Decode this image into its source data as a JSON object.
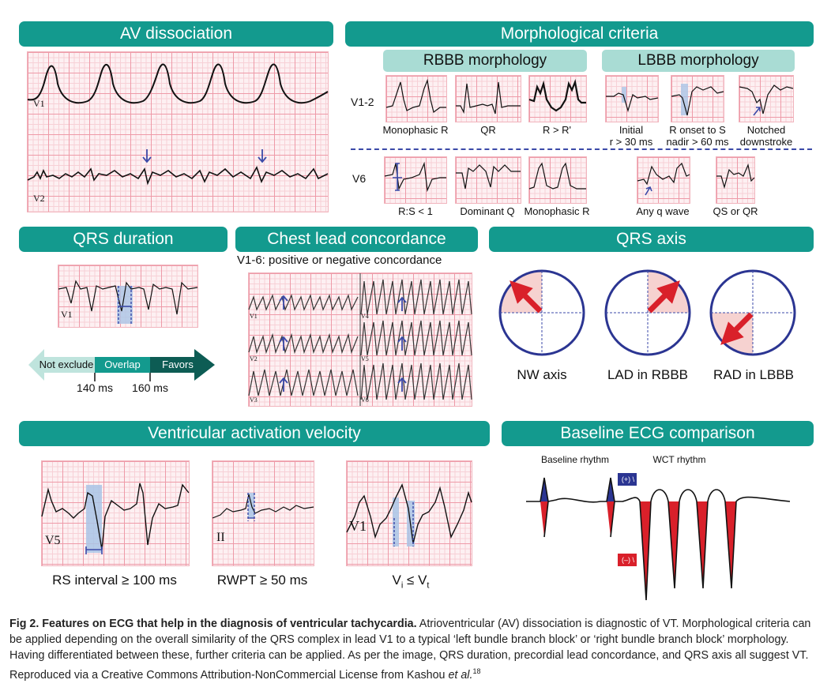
{
  "headers": {
    "av": "AV dissociation",
    "morph": "Morphological criteria",
    "rbbb": "RBBB morphology",
    "lbbb": "LBBB morphology",
    "qrs_dur": "QRS duration",
    "concord": "Chest lead concordance",
    "axis": "QRS axis",
    "velocity": "Ventricular activation velocity",
    "baseline": "Baseline ECG comparison"
  },
  "leads": {
    "v1": "V1",
    "v2": "V2",
    "v1_2": "V1-2",
    "v6": "V6",
    "v1_small": "V1",
    "v5": "V5",
    "ii": "II",
    "v1_vel": "V1",
    "v1c": "V1",
    "v2c": "V2",
    "v3c": "V3",
    "v4c": "V4",
    "v5c": "V5",
    "v6c": "V6"
  },
  "rbbb_v12": [
    "Monophasic R",
    "QR",
    "R > R'"
  ],
  "lbbb_v12": [
    "Initial\nr > 30 ms",
    "R onset to S\nnadir > 60 ms",
    "Notched\ndownstroke"
  ],
  "rbbb_v6": [
    "R:S < 1",
    "Dominant Q",
    "Monophasic R"
  ],
  "lbbb_v6": [
    "Any q wave",
    "QS or QR"
  ],
  "qrs_duration": {
    "segments": [
      "Not exclude",
      "Overlap",
      "Favors"
    ],
    "ticks": [
      "140 ms",
      "160 ms"
    ]
  },
  "concordance_title": "V1-6: positive or negative concordance",
  "axis_labels": [
    "NW axis",
    "LAD in RBBB",
    "RAD in LBBB"
  ],
  "velocity_labels": [
    "RS interval ≥ 100 ms",
    "RWPT ≥ 50 ms"
  ],
  "velocity_formula": {
    "v": "V",
    "i": "i",
    "le": " ≤ V",
    "t": "t"
  },
  "baseline": {
    "baseline_rhythm": "Baseline rhythm",
    "wct_rhythm": "WCT rhythm",
    "pos": "(+) \\",
    "neg": "(–) \\"
  },
  "caption": {
    "bold": "Fig 2. Features on ECG that help in the diagnosis of ventricular tachycardia.",
    "text": "Atrioventricular (AV) dissociation is diagnostic of VT. Morphological criteria can be applied depending on the overall similarity of the QRS complex in lead V1 to a typical ‘left bundle branch block’ or ‘right bundle branch block’ morphology. Having differentiated between these, further criteria can be applied. As per the image, QRS duration, precordial lead concordance, and QRS axis all suggest VT. Reproduced via a Creative Commons Attribution-NonCommercial License from Kashou ",
    "etal": "et al.",
    "ref": "18"
  },
  "colors": {
    "header": "#139a8e",
    "sub": "#a9dcd4",
    "trace": "#111111",
    "accent": "#3b4aa8",
    "red": "#d9202a"
  }
}
